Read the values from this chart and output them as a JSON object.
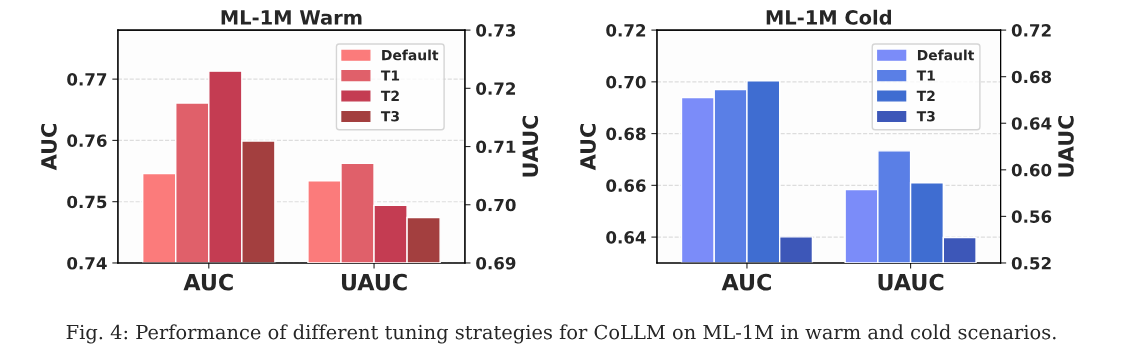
{
  "chart_data": [
    {
      "type": "bar",
      "title": "ML-1M Warm",
      "ylabel": "AUC",
      "y2label": "UAUC",
      "categories": [
        "AUC",
        "UAUC"
      ],
      "series": [
        {
          "name": "Default",
          "color": "#fb7b7b",
          "values": [
            0.7546,
            null
          ]
        },
        {
          "name": "T1",
          "color": "#e0606a",
          "values": [
            0.7661,
            null
          ]
        },
        {
          "name": "T2",
          "color": "#c43c52",
          "values": [
            0.7713,
            null
          ]
        },
        {
          "name": "T3",
          "color": "#a33f3f",
          "values": [
            0.7599,
            null
          ]
        },
        {
          "color": "#fb7b7b",
          "values": [
            null,
            0.7041
          ],
          "axis": "y2"
        },
        {
          "color": "#e0606a",
          "values": [
            null,
            0.7071
          ],
          "axis": "y2"
        },
        {
          "color": "#c43c52",
          "values": [
            null,
            0.6999
          ],
          "axis": "y2"
        },
        {
          "color": "#a33f3f",
          "values": [
            null,
            0.6978
          ],
          "axis": "y2"
        }
      ],
      "ylim": [
        0.74,
        0.778
      ],
      "yticks": [
        0.74,
        0.75,
        0.76,
        0.77
      ],
      "y2lim": [
        0.69,
        0.73
      ],
      "y2ticks": [
        0.69,
        {
          "value": 0.7,
          "label": "0.70"
        },
        0.71,
        0.72,
        0.73
      ],
      "grid": "y",
      "legend": "top right",
      "annotations": [
        "Fig. 4: Performance of different tuning strategies for CoLLM on ML-1M in warm and cold scenarios."
      ]
    },
    {
      "type": "bar",
      "title": "ML-1M Cold",
      "ylabel": "AUC",
      "y2label": "UAUC",
      "categories": [
        "AUC",
        "UAUC"
      ],
      "series": [
        {
          "name": "Default",
          "color": "#7b8cf9",
          "values": [
            0.6939,
            null
          ]
        },
        {
          "name": "T1",
          "color": "#5a7fe6",
          "values": [
            0.697,
            null
          ]
        },
        {
          "name": "T2",
          "color": "#3f6dd1",
          "values": [
            0.7004,
            null
          ]
        },
        {
          "name": "T3",
          "color": "#3d57b8",
          "values": [
            0.6401,
            null
          ]
        },
        {
          "color": "#7b8cf9",
          "values": [
            null,
            0.583
          ],
          "axis": "y2"
        },
        {
          "color": "#5a7fe6",
          "values": [
            null,
            0.6163
          ],
          "axis": "y2"
        },
        {
          "color": "#3f6dd1",
          "values": [
            null,
            0.5889
          ],
          "axis": "y2"
        },
        {
          "color": "#3d57b8",
          "values": [
            null,
            0.5419
          ],
          "axis": "y2"
        }
      ],
      "ylim": [
        0.63,
        0.72
      ],
      "yticks": [
        0.64,
        0.66,
        0.68,
        {
          "value": 0.7,
          "label": "0.70"
        },
        0.72
      ],
      "y2lim": [
        0.52,
        0.72
      ],
      "y2ticks": [
        0.52,
        0.56,
        {
          "value": 0.6,
          "label": "0.60"
        },
        0.64,
        0.68,
        0.72
      ],
      "grid": "y",
      "legend": "top right"
    }
  ]
}
